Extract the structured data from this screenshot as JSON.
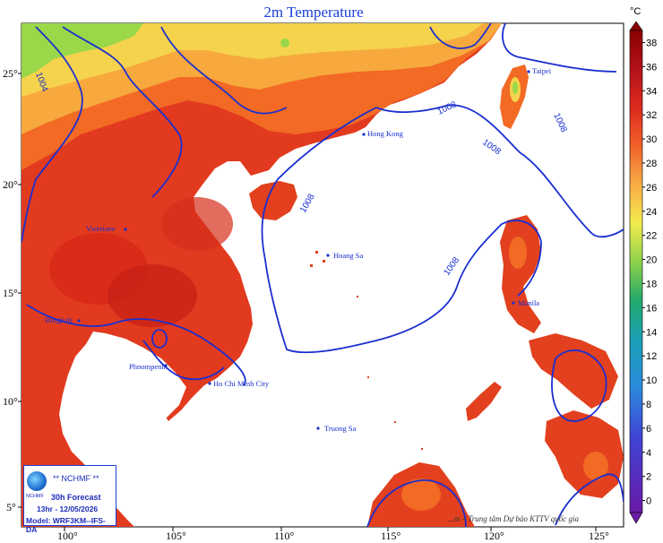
{
  "title": "2m Temperature",
  "colorbar": {
    "unit": "°C",
    "labels": [
      "38",
      "36",
      "34",
      "32",
      "30",
      "28",
      "26",
      "24",
      "22",
      "20",
      "18",
      "16",
      "14",
      "12",
      "10",
      "8",
      "6",
      "4",
      "2",
      "0"
    ],
    "colors": [
      "#8b0000",
      "#a50f15",
      "#c41e1e",
      "#dd2a1e",
      "#e8431f",
      "#f0622a",
      "#f58a38",
      "#f9ad46",
      "#fccf4f",
      "#f2ec4e",
      "#c8e64a",
      "#8fd24a",
      "#4fbd4c",
      "#22a96a",
      "#1b9fb4",
      "#2b8bdb",
      "#3d6ee0",
      "#3f46d6",
      "#5c2ec8",
      "#6a1aa8"
    ]
  },
  "axes": {
    "x_ticks": [
      "100°",
      "105°",
      "110°",
      "115°",
      "120°",
      "125°"
    ],
    "y_ticks": [
      "25°",
      "20°",
      "15°",
      "10°",
      "5°"
    ]
  },
  "isobars": [
    "1004",
    "1008",
    "1008",
    "1008",
    "1008",
    "1008"
  ],
  "places": [
    {
      "name": "Taipei"
    },
    {
      "name": "Hong Kong"
    },
    {
      "name": "Hoang Sa"
    },
    {
      "name": "Manila"
    },
    {
      "name": "Vientiane"
    },
    {
      "name": "Bangkok"
    },
    {
      "name": "Phnompenh"
    },
    {
      "name": "Ho Chi Minh City"
    },
    {
      "name": "Truong Sa"
    }
  ],
  "credit_box": {
    "org": "** NCHMF **",
    "logo_text": "NCHMF",
    "forecast": "30h Forecast",
    "time": "13hr - 12/05/2026",
    "model": "Model: WRF3KM--IFS-DA"
  },
  "footer_credit": "...m – Trung tâm Dự báo KTTV quốc gia",
  "colors": {
    "title": "#1a3fd6",
    "isobar": "#1a2fd0",
    "sea": "#ffffff",
    "land_hot": "#e2371c",
    "land_warm": "#f26a24",
    "land_mild": "#f7a93e",
    "land_cool": "#f5d34c",
    "land_cold": "#9ad84a"
  }
}
